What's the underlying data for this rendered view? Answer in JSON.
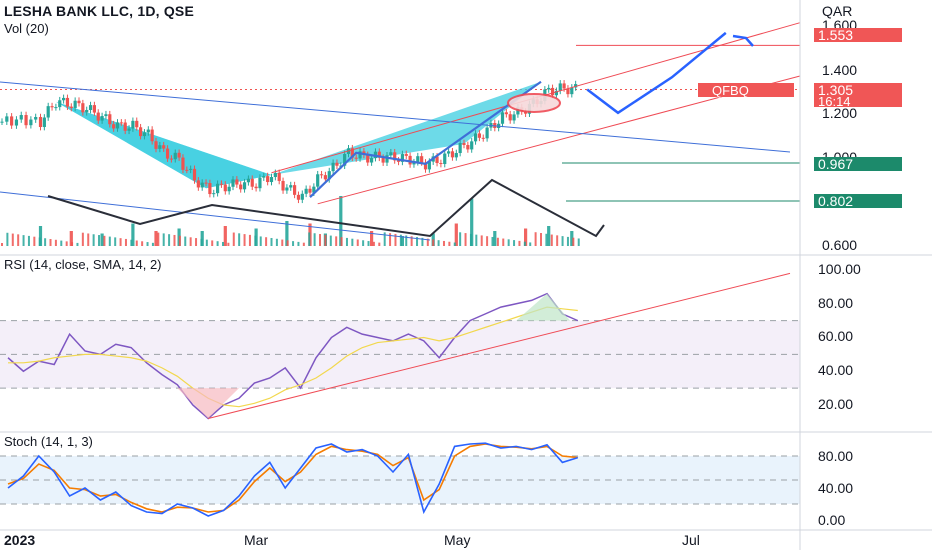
{
  "header": {
    "title": "LESHA BANK LLC, 1D, QSE",
    "volume_label": "Vol (20)",
    "currency": "QAR"
  },
  "price_pane": {
    "ticks": [
      1.6,
      1.4,
      1.2,
      1.0,
      0.6
    ],
    "tick_labels": [
      "1.600",
      "1.400",
      "1.200",
      "1.000",
      "0.600"
    ],
    "ylim": [
      0.56,
      1.69
    ],
    "badges": {
      "target": {
        "value": "1.553",
        "color": "#f05656"
      },
      "ticker": {
        "value": "QFBQ",
        "color": "#f05656"
      },
      "last_price": {
        "value": "1.305",
        "color": "#f05656"
      },
      "countdown": {
        "value": "16:14",
        "color": "#f05656"
      },
      "support_1": {
        "value": "0.967",
        "color": "#1c8a6b"
      },
      "support_2": {
        "value": "0.802",
        "color": "#1c8a6b"
      }
    }
  },
  "rsi_pane": {
    "title": "RSI (14, close, SMA, 14, 2)",
    "ticks": [
      100,
      80,
      60,
      40,
      20
    ],
    "tick_labels": [
      "100.00",
      "80.00",
      "60.00",
      "40.00",
      "20.00"
    ],
    "ylim": [
      6,
      108
    ]
  },
  "stoch_pane": {
    "title": "Stoch (14, 1, 3)",
    "ticks": [
      80,
      40,
      0
    ],
    "tick_labels": [
      "80.00",
      "40.00",
      "0.00"
    ],
    "ylim": [
      -5,
      108
    ]
  },
  "time_axis": {
    "labels": [
      "2023",
      "Mar",
      "May",
      "Jul"
    ]
  },
  "colors": {
    "up": "#26a69a",
    "down": "#ef5350",
    "pattern_fill": "#3ccde0",
    "trend_red": "#ef4b55",
    "trend_blue": "#3f6fd8",
    "forecast_blue": "#2962ff",
    "rsi_line": "#7e57c2",
    "rsi_ma": "#f2d84e",
    "stoch_k": "#2962ff",
    "stoch_d": "#f57c00"
  },
  "chart_data": [
    {
      "type": "candlestick",
      "title": "LESHA BANK LLC, 1D, QSE",
      "ylabel": "QAR",
      "x_range_days": [
        0,
        210
      ],
      "x_ticks_days": [
        {
          "label": "2023",
          "day": 0
        },
        {
          "label": "Mar",
          "day": 59
        },
        {
          "label": "May",
          "day": 120
        },
        {
          "label": "Jul",
          "day": 181
        }
      ],
      "close_series": {
        "day": [
          0,
          5,
          10,
          14,
          18,
          22,
          26,
          30,
          34,
          38,
          42,
          46,
          50,
          54,
          58,
          62,
          66,
          70,
          74,
          78,
          82,
          86,
          90,
          94,
          98,
          102,
          106,
          110,
          114,
          118,
          122,
          126,
          130,
          134,
          138,
          142,
          146,
          150
        ],
        "close": [
          1.16,
          1.17,
          1.16,
          1.25,
          1.24,
          1.22,
          1.18,
          1.14,
          1.14,
          1.1,
          1.02,
          0.99,
          0.9,
          0.85,
          0.87,
          0.88,
          0.88,
          0.92,
          0.86,
          0.82,
          0.9,
          0.95,
          1.02,
          1.0,
          1.0,
          1.0,
          0.99,
          0.97,
          0.99,
          1.03,
          1.07,
          1.12,
          1.18,
          1.2,
          1.24,
          1.3,
          1.31,
          1.305
        ]
      },
      "levels": {
        "target": 1.553,
        "last_price": 1.305,
        "support_1": 0.967,
        "support_2": 0.802
      },
      "forecast_path": {
        "day": [
          152,
          160,
          174,
          188
        ],
        "price": [
          1.305,
          1.2,
          1.36,
          1.56
        ]
      },
      "ylim": [
        0.56,
        1.69
      ]
    },
    {
      "type": "bar",
      "title": "Vol (20)",
      "day": [
        10,
        18,
        26,
        34,
        40,
        46,
        52,
        58,
        66,
        74,
        80,
        84,
        88,
        96,
        104,
        112,
        118,
        122,
        128,
        136,
        142,
        148
      ],
      "values": [
        0.4,
        0.3,
        0.25,
        0.45,
        0.3,
        0.35,
        0.3,
        0.4,
        0.35,
        0.5,
        0.45,
        0.25,
        1.0,
        0.3,
        0.2,
        0.25,
        0.45,
        0.95,
        0.3,
        0.35,
        0.4,
        0.3
      ]
    },
    {
      "type": "line",
      "title": "RSI (14, close, SMA, 14, 2)",
      "x": [
        0,
        4,
        8,
        12,
        16,
        20,
        24,
        28,
        32,
        36,
        40,
        44,
        48,
        52,
        56,
        60,
        64,
        68,
        72,
        76,
        80,
        84,
        88,
        92,
        96,
        100,
        104,
        108,
        112,
        116,
        120,
        124,
        128,
        132,
        136,
        140,
        144,
        148
      ],
      "series": [
        {
          "values": [
            48,
            40,
            46,
            44,
            62,
            52,
            50,
            56,
            54,
            45,
            38,
            32,
            20,
            12,
            20,
            24,
            33,
            36,
            42,
            30,
            48,
            60,
            66,
            62,
            60,
            58,
            62,
            58,
            48,
            60,
            70,
            74,
            78,
            80,
            82,
            86,
            74,
            70
          ]
        },
        {
          "values": [
            45,
            45,
            46,
            48,
            49,
            50,
            50,
            49,
            48,
            46,
            42,
            37,
            30,
            24,
            20,
            19,
            21,
            24,
            29,
            32,
            36,
            42,
            49,
            54,
            57,
            58,
            59,
            60,
            58,
            60,
            63,
            66,
            69,
            72,
            75,
            78,
            77,
            76
          ]
        }
      ],
      "ylim": [
        6,
        108
      ]
    },
    {
      "type": "line",
      "title": "Stoch (14, 1, 3)",
      "x": [
        0,
        4,
        8,
        12,
        16,
        20,
        24,
        28,
        32,
        36,
        40,
        44,
        48,
        52,
        56,
        60,
        64,
        68,
        72,
        76,
        80,
        84,
        88,
        92,
        96,
        100,
        104,
        108,
        112,
        116,
        120,
        124,
        128,
        132,
        136,
        140,
        144,
        148
      ],
      "series": [
        {
          "values": [
            40,
            55,
            80,
            60,
            30,
            40,
            25,
            35,
            18,
            10,
            8,
            20,
            15,
            5,
            12,
            30,
            55,
            72,
            40,
            65,
            90,
            95,
            85,
            88,
            80,
            60,
            82,
            10,
            45,
            92,
            95,
            96,
            90,
            92,
            88,
            94,
            72,
            78
          ]
        },
        {
          "values": [
            45,
            52,
            70,
            62,
            40,
            38,
            30,
            32,
            22,
            14,
            10,
            16,
            15,
            10,
            12,
            25,
            48,
            65,
            48,
            60,
            82,
            92,
            88,
            86,
            82,
            68,
            78,
            25,
            38,
            80,
            92,
            95,
            92,
            91,
            89,
            92,
            80,
            78
          ]
        }
      ],
      "ylim": [
        -5,
        108
      ]
    }
  ]
}
